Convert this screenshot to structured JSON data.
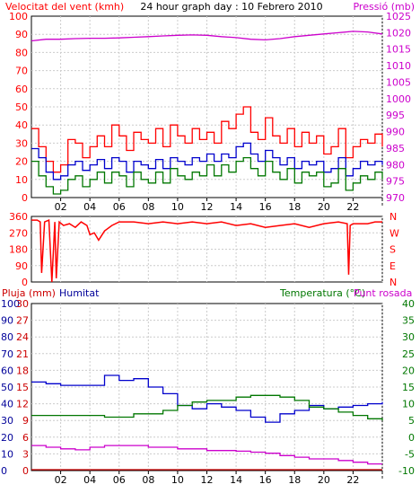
{
  "header": {
    "title": "24 hour graph day : 10 Febrero 2010"
  },
  "colors": {
    "wind": "#ff0000",
    "pressure": "#cc00cc",
    "rain": "#cc0000",
    "humidity": "#000099",
    "temperature": "#007700",
    "dewpoint": "#cc00cc",
    "humidity_line": "#0000cc",
    "temperature_line": "#007700",
    "wind_avg_line": "#0000cc",
    "wind_min_line": "#007700",
    "grid": "#cccccc",
    "frame": "#000000"
  },
  "chart_data": [
    {
      "type": "line",
      "id": "wind-pressure",
      "left_label": "Velocitat del vent (kmh)",
      "right_label": "Pressió (mb)",
      "x_ticks": [
        "02",
        "04",
        "06",
        "08",
        "10",
        "12",
        "14",
        "16",
        "18",
        "20",
        "22",
        "'"
      ],
      "xlim": [
        0,
        24
      ],
      "left_ylim": [
        0,
        100
      ],
      "left_ticks": [
        "0",
        "10",
        "20",
        "30",
        "40",
        "50",
        "60",
        "70",
        "80",
        "90",
        "100"
      ],
      "right_ylim": [
        970,
        1025
      ],
      "right_ticks": [
        "970",
        "975",
        "980",
        "985",
        "990",
        "995",
        "1000",
        "1005",
        "1010",
        "1015",
        "1020",
        "1025"
      ],
      "series": [
        {
          "role": "gust",
          "axis": "left",
          "x": [
            0.0,
            0.5,
            1.0,
            1.5,
            2.0,
            2.5,
            3.0,
            3.5,
            4.0,
            4.5,
            5.0,
            5.5,
            6.0,
            6.5,
            7.0,
            7.5,
            8.0,
            8.5,
            9.0,
            9.5,
            10.0,
            10.5,
            11.0,
            11.5,
            12.0,
            12.5,
            13.0,
            13.5,
            14.0,
            14.5,
            15.0,
            15.5,
            16.0,
            16.5,
            17.0,
            17.5,
            18.0,
            18.5,
            19.0,
            19.5,
            20.0,
            20.5,
            21.0,
            21.5,
            22.0,
            22.5,
            23.0,
            23.5,
            24.0
          ],
          "values": [
            38,
            28,
            20,
            14,
            18,
            32,
            30,
            22,
            28,
            34,
            28,
            40,
            34,
            26,
            36,
            32,
            30,
            38,
            28,
            40,
            34,
            30,
            38,
            32,
            36,
            30,
            42,
            38,
            46,
            50,
            36,
            32,
            44,
            34,
            30,
            38,
            28,
            36,
            30,
            34,
            24,
            28,
            38,
            22,
            28,
            32,
            30,
            35,
            28
          ]
        },
        {
          "role": "average",
          "axis": "left",
          "x": [
            0.0,
            0.5,
            1.0,
            1.5,
            2.0,
            2.5,
            3.0,
            3.5,
            4.0,
            4.5,
            5.0,
            5.5,
            6.0,
            6.5,
            7.0,
            7.5,
            8.0,
            8.5,
            9.0,
            9.5,
            10.0,
            10.5,
            11.0,
            11.5,
            12.0,
            12.5,
            13.0,
            13.5,
            14.0,
            14.5,
            15.0,
            15.5,
            16.0,
            16.5,
            17.0,
            17.5,
            18.0,
            18.5,
            19.0,
            19.5,
            20.0,
            20.5,
            21.0,
            21.5,
            22.0,
            22.5,
            23.0,
            23.5,
            24.0
          ],
          "values": [
            27,
            22,
            14,
            10,
            12,
            18,
            20,
            15,
            18,
            21,
            16,
            22,
            20,
            14,
            20,
            18,
            16,
            21,
            16,
            22,
            20,
            18,
            22,
            20,
            24,
            20,
            24,
            22,
            28,
            30,
            24,
            20,
            26,
            22,
            18,
            22,
            16,
            20,
            18,
            20,
            14,
            16,
            22,
            12,
            16,
            20,
            18,
            20,
            18
          ]
        },
        {
          "role": "minimum",
          "axis": "left",
          "x": [
            0.0,
            0.5,
            1.0,
            1.5,
            2.0,
            2.5,
            3.0,
            3.5,
            4.0,
            4.5,
            5.0,
            5.5,
            6.0,
            6.5,
            7.0,
            7.5,
            8.0,
            8.5,
            9.0,
            9.5,
            10.0,
            10.5,
            11.0,
            11.5,
            12.0,
            12.5,
            13.0,
            13.5,
            14.0,
            14.5,
            15.0,
            15.5,
            16.0,
            16.5,
            17.0,
            17.5,
            18.0,
            18.5,
            19.0,
            19.5,
            20.0,
            20.5,
            21.0,
            21.5,
            22.0,
            22.5,
            23.0,
            23.5,
            24.0
          ],
          "values": [
            20,
            12,
            6,
            2,
            4,
            10,
            12,
            6,
            10,
            14,
            8,
            14,
            12,
            6,
            14,
            10,
            8,
            14,
            8,
            16,
            12,
            10,
            14,
            12,
            18,
            12,
            18,
            14,
            20,
            22,
            16,
            12,
            20,
            14,
            10,
            16,
            8,
            14,
            12,
            14,
            6,
            8,
            16,
            4,
            8,
            12,
            10,
            14,
            10
          ]
        },
        {
          "role": "pressure",
          "axis": "right",
          "x": [
            0,
            1,
            2,
            3,
            4,
            5,
            6,
            7,
            8,
            9,
            10,
            11,
            12,
            13,
            14,
            15,
            16,
            17,
            18,
            19,
            20,
            21,
            22,
            23,
            24
          ],
          "values": [
            1017.5,
            1018,
            1018,
            1018.2,
            1018.3,
            1018.3,
            1018.4,
            1018.6,
            1018.8,
            1019,
            1019.2,
            1019.3,
            1019.2,
            1018.8,
            1018.5,
            1018,
            1017.8,
            1018.2,
            1018.8,
            1019.2,
            1019.6,
            1020,
            1020.4,
            1020.2,
            1019.6
          ]
        }
      ]
    },
    {
      "type": "line",
      "id": "wind-direction",
      "left_ticks": [
        "0",
        "90",
        "180",
        "270",
        "360"
      ],
      "left_ylim": [
        0,
        360
      ],
      "right_ticks": [
        "N",
        "E",
        "S",
        "W",
        "N"
      ],
      "xlim": [
        0,
        24
      ],
      "series": [
        {
          "role": "direction",
          "x": [
            0.0,
            0.4,
            0.6,
            0.7,
            0.9,
            1.2,
            1.4,
            1.6,
            1.7,
            1.9,
            2.2,
            2.6,
            3.0,
            3.4,
            3.8,
            4.0,
            4.3,
            4.6,
            5.0,
            5.5,
            6.0,
            7.0,
            8.0,
            9.0,
            10.0,
            11.0,
            12.0,
            13.0,
            14.0,
            15.0,
            16.0,
            17.0,
            18.0,
            19.0,
            20.0,
            21.0,
            21.6,
            21.7,
            21.8,
            22.0,
            23.0,
            23.5,
            24.0
          ],
          "values": [
            340,
            340,
            330,
            50,
            330,
            340,
            0,
            330,
            20,
            330,
            310,
            320,
            300,
            330,
            310,
            260,
            270,
            230,
            280,
            310,
            330,
            330,
            320,
            330,
            320,
            330,
            320,
            330,
            310,
            320,
            300,
            310,
            320,
            300,
            320,
            330,
            320,
            40,
            310,
            320,
            320,
            330,
            330
          ]
        }
      ]
    },
    {
      "type": "line",
      "id": "rain-humidity-temp",
      "left_label_rain": "Pluja (mm)",
      "left_label_humidity": "Humitat",
      "right_label_temperature": "Temperatura (°C)",
      "right_label_dewpoint": "Punt rosada",
      "x_ticks": [
        "02",
        "04",
        "06",
        "08",
        "10",
        "12",
        "14",
        "16",
        "18",
        "20",
        "22",
        "'"
      ],
      "xlim": [
        0,
        24
      ],
      "humidity_ticks": [
        "0",
        "10",
        "20",
        "30",
        "40",
        "50",
        "60",
        "70",
        "80",
        "90",
        "100"
      ],
      "humidity_ylim": [
        0,
        100
      ],
      "rain_ticks": [
        "0",
        "3",
        "6",
        "9",
        "12",
        "15",
        "18",
        "21",
        "24",
        "27",
        "30"
      ],
      "temp_ticks": [
        "-10",
        "-5",
        "0",
        "5",
        "10",
        "15",
        "20",
        "25",
        "30",
        "35",
        "40"
      ],
      "temp_ylim": [
        -10,
        40
      ],
      "series": [
        {
          "role": "humidity",
          "x": [
            0,
            1,
            2,
            3,
            4,
            5,
            6,
            7,
            8,
            9,
            10,
            11,
            12,
            13,
            14,
            15,
            16,
            17,
            18,
            19,
            20,
            21,
            22,
            23,
            24
          ],
          "values": [
            53,
            52,
            51,
            51,
            51,
            57,
            54,
            55,
            50,
            46,
            39,
            37,
            40,
            38,
            36,
            32,
            29,
            34,
            36,
            39,
            37,
            38,
            39,
            40,
            41
          ]
        },
        {
          "role": "temperature",
          "x": [
            0,
            1,
            2,
            3,
            4,
            5,
            6,
            7,
            8,
            9,
            10,
            11,
            12,
            13,
            14,
            15,
            16,
            17,
            18,
            19,
            20,
            21,
            22,
            23,
            24
          ],
          "values": [
            6.5,
            6.5,
            6.5,
            6.5,
            6.5,
            6.0,
            6.0,
            7.0,
            7.0,
            8.0,
            9.5,
            10.5,
            11.0,
            11.0,
            12.0,
            12.5,
            12.5,
            12.0,
            11.0,
            9.0,
            8.5,
            7.5,
            6.5,
            5.5,
            5.0
          ]
        },
        {
          "role": "dewpoint",
          "x": [
            0,
            1,
            2,
            3,
            4,
            5,
            6,
            7,
            8,
            9,
            10,
            11,
            12,
            13,
            14,
            15,
            16,
            17,
            18,
            19,
            20,
            21,
            22,
            23,
            24
          ],
          "values": [
            -2.5,
            -3.0,
            -3.5,
            -3.8,
            -3.0,
            -2.5,
            -2.5,
            -2.5,
            -3.0,
            -3.0,
            -3.5,
            -3.5,
            -4.0,
            -4.0,
            -4.2,
            -4.5,
            -4.8,
            -5.5,
            -6.0,
            -6.5,
            -6.5,
            -7.0,
            -7.5,
            -8.0,
            -8.0
          ]
        },
        {
          "role": "rain",
          "x": [
            0,
            24
          ],
          "values": [
            0,
            0
          ]
        }
      ]
    }
  ]
}
